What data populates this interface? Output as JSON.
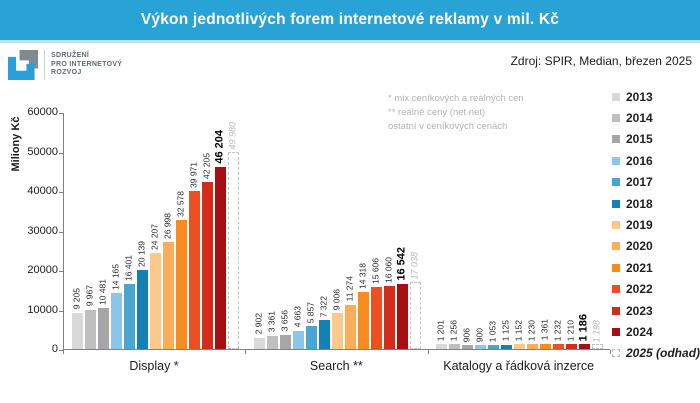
{
  "header": {
    "title": "Výkon jednotlivých forem internetové reklamy v mil. Kč"
  },
  "logo": {
    "line1": "SDRUŽENÍ",
    "line2": "PRO INTERNETOVÝ",
    "line3": "ROZVOJ"
  },
  "source": "Zdroj: SPIR, Median, březen 2025",
  "notes": {
    "line1": "* mix ceníkových a reálných cen",
    "line2": "** reálné ceny (net net)",
    "line3": "ostatní v ceníkových cenách"
  },
  "chart_data": {
    "type": "bar",
    "title": "Výkon jednotlivých forem internetové reklamy v mil. Kč",
    "xlabel": "",
    "ylabel": "Miliony Kč",
    "ylim": [
      0,
      60000
    ],
    "yticks": [
      0,
      10000,
      20000,
      30000,
      40000,
      50000,
      60000
    ],
    "grid": false,
    "legend_position": "right",
    "value_label_format": "space-thousands",
    "categories": [
      "Display *",
      "Search **",
      "Katalogy a řádková inzerce"
    ],
    "series": [
      {
        "name": "2013",
        "color": "#d9d9d9",
        "values": [
          9205,
          2902,
          1201
        ]
      },
      {
        "name": "2014",
        "color": "#bfbfbf",
        "values": [
          9967,
          3361,
          1256
        ]
      },
      {
        "name": "2015",
        "color": "#a6a6a6",
        "values": [
          10481,
          3656,
          906
        ]
      },
      {
        "name": "2016",
        "color": "#8dc6e8",
        "values": [
          14165,
          4663,
          900
        ]
      },
      {
        "name": "2017",
        "color": "#4aa5d0",
        "values": [
          16401,
          5857,
          1053
        ]
      },
      {
        "name": "2018",
        "color": "#1381b4",
        "values": [
          20139,
          7322,
          1125
        ]
      },
      {
        "name": "2019",
        "color": "#fbc98c",
        "values": [
          24207,
          9006,
          1152
        ]
      },
      {
        "name": "2020",
        "color": "#fbad5a",
        "values": [
          26998,
          11274,
          1230
        ]
      },
      {
        "name": "2021",
        "color": "#f78b1e",
        "values": [
          32578,
          14318,
          1361
        ]
      },
      {
        "name": "2022",
        "color": "#ee4e23",
        "values": [
          39971,
          15606,
          1232
        ]
      },
      {
        "name": "2023",
        "color": "#d42b1a",
        "values": [
          42205,
          16060,
          1210
        ]
      },
      {
        "name": "2024",
        "color": "#a60f12",
        "values": [
          46204,
          16542,
          1186
        ],
        "emphasis": true
      },
      {
        "name": "2025 (odhad)",
        "color": "#ffffff",
        "values": [
          49980,
          17038,
          1198
        ],
        "estimate": true
      }
    ],
    "brand_colors": {
      "header_blue": "#29a3d5",
      "logo_blue": "#2d9fd8",
      "logo_gray": "#808b91"
    }
  }
}
